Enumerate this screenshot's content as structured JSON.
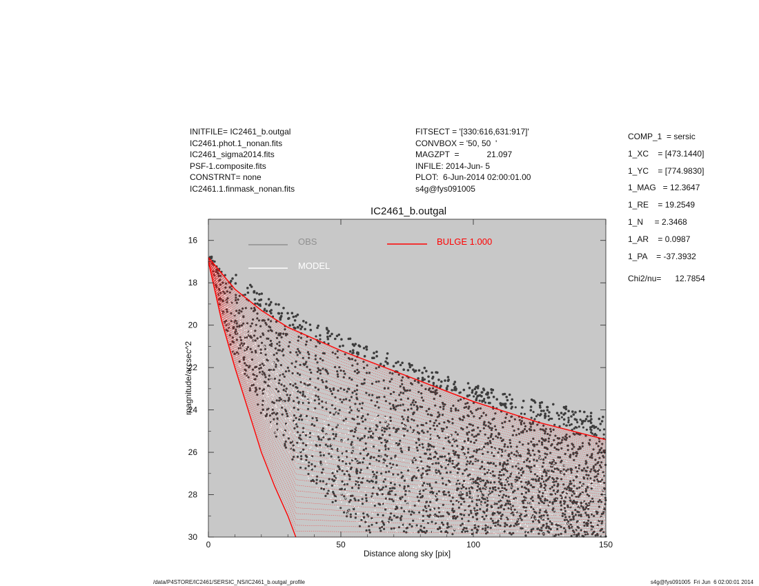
{
  "header_left": [
    "INITFILE= IC2461_b.outgal",
    "IC2461.phot.1_nonan.fits",
    "IC2461_sigma2014.fits",
    "PSF-1.composite.fits",
    "CONSTRNT= none",
    "IC2461.1.finmask_nonan.fits"
  ],
  "header_mid": [
    "FITSECT = '[330:616,631:917]'",
    "CONVBOX = '50, 50  '",
    "MAGZPT  =            21.097",
    "INFILE: 2014-Jun- 5",
    "PLOT:  6-Jun-2014 02:00:01.00",
    "s4g@fys091005"
  ],
  "params": [
    "COMP_1  = sersic",
    "1_XC    = [473.1440]",
    "1_YC    = [774.9830]",
    "1_MAG   = 12.3647",
    "1_RE    = 19.2549",
    "1_N     = 2.3468",
    "1_AR    = 0.0987",
    "1_PA    = -37.3932"
  ],
  "chi2": "Chi2/nu=      12.7854",
  "footer": {
    "left": "/data/P4STORE/IC2461/SERSIC_NS/IC2461_b.outgal_profile",
    "right": "s4g@fys091005  Fri Jun  6 02:00:01 2014"
  },
  "colors": {
    "panel": "#c8c8c8",
    "obs": "#3c3c3c",
    "model": "#ffffff",
    "bulge": "#ff0000"
  },
  "chart_data": {
    "type": "scatter",
    "title": "IC2461_b.outgal",
    "xlabel": "Distance along sky [pix]",
    "ylabel": "magnitude/arcsec^2",
    "xlim": [
      0,
      150
    ],
    "ylim": [
      30,
      15
    ],
    "y_inverted": true,
    "xticks": [
      0,
      50,
      100,
      150
    ],
    "yticks": [
      16,
      18,
      20,
      22,
      24,
      26,
      28,
      30
    ],
    "legend": [
      {
        "name": "OBS",
        "color": "#909090"
      },
      {
        "name": "MODEL",
        "color": "#ffffff"
      },
      {
        "name": "BULGE  1.000",
        "color": "#ff0000"
      }
    ],
    "series": [
      {
        "name": "OBS",
        "note": "dense point cloud between lower and upper envelopes",
        "upper_envelope": [
          [
            1,
            16.8
          ],
          [
            3,
            17.3
          ],
          [
            10,
            18.2
          ],
          [
            20,
            19.2
          ],
          [
            30,
            20.0
          ],
          [
            50,
            21.1
          ],
          [
            75,
            22.4
          ],
          [
            100,
            23.5
          ],
          [
            125,
            24.3
          ],
          [
            150,
            24.8
          ]
        ],
        "lower_envelope": [
          [
            1,
            16.9
          ],
          [
            5,
            19.6
          ],
          [
            10,
            21.6
          ],
          [
            20,
            24.2
          ],
          [
            30,
            26.1
          ],
          [
            40,
            27.6
          ],
          [
            50,
            28.8
          ],
          [
            60,
            29.8
          ],
          [
            150,
            30
          ]
        ]
      },
      {
        "name": "MODEL",
        "note": "white points overlapping observations in the fan region"
      },
      {
        "name": "BULGE  1.000",
        "note": "red fan of model points",
        "upper_envelope": [
          [
            0,
            16.8
          ],
          [
            2,
            17.1
          ],
          [
            10,
            18.3
          ],
          [
            20,
            19.3
          ],
          [
            30,
            20.1
          ],
          [
            50,
            21.2
          ],
          [
            75,
            22.4
          ],
          [
            100,
            23.6
          ],
          [
            125,
            24.6
          ],
          [
            150,
            25.4
          ]
        ],
        "lower_envelope": [
          [
            0,
            17.0
          ],
          [
            5,
            19.8
          ],
          [
            10,
            22.0
          ],
          [
            15,
            24.0
          ],
          [
            20,
            26.0
          ],
          [
            25,
            27.6
          ],
          [
            30,
            29.0
          ],
          [
            33,
            30.0
          ]
        ]
      }
    ]
  }
}
